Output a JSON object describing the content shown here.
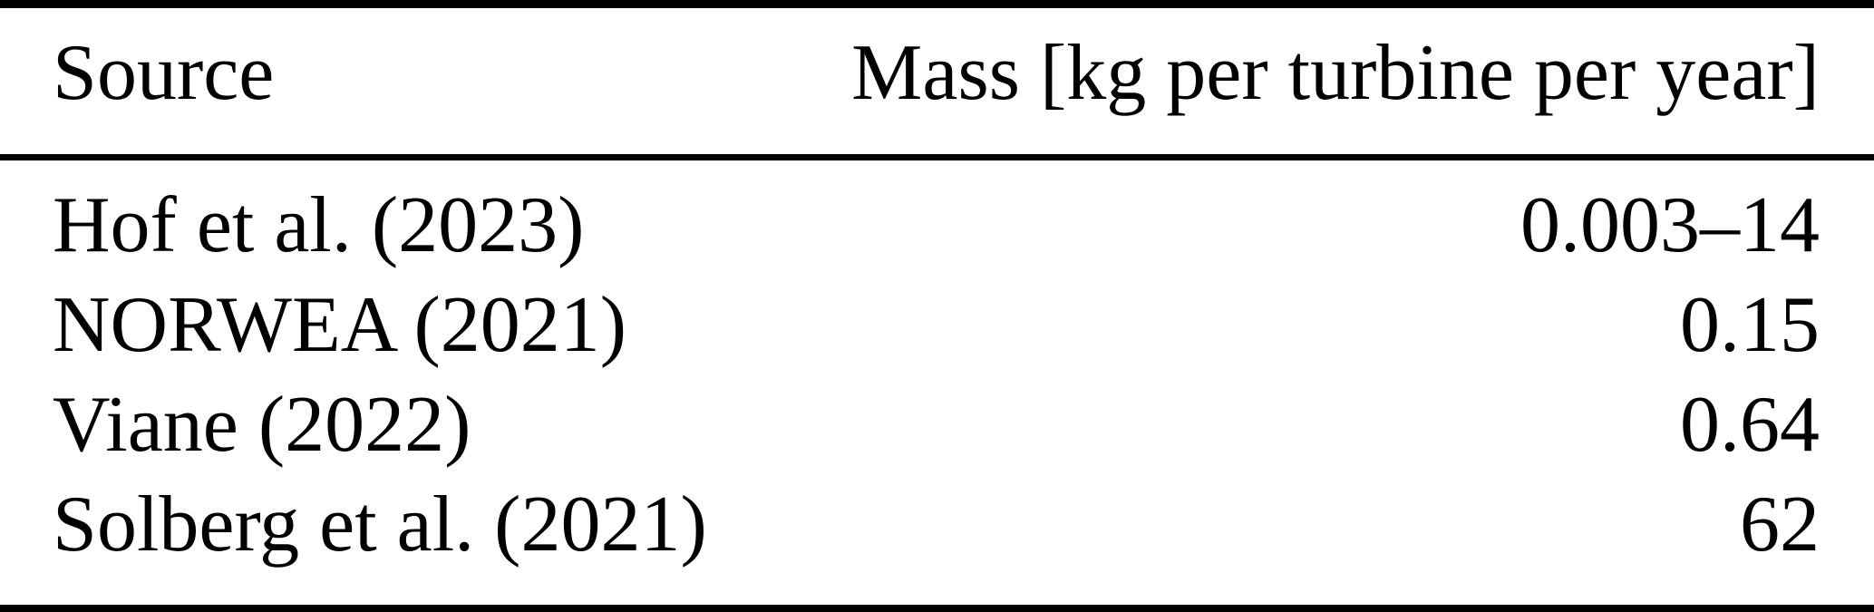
{
  "table": {
    "header": {
      "source": "Source",
      "mass": "Mass [kg per turbine per year]"
    },
    "rows": [
      {
        "source": "Hof et al. (2023)",
        "mass": "0.003–14"
      },
      {
        "source": "NORWEA (2021)",
        "mass": "0.15"
      },
      {
        "source": "Viane (2022)",
        "mass": "0.64"
      },
      {
        "source": "Solberg et al. (2021)",
        "mass": "62"
      }
    ]
  },
  "colors": {
    "text": "#000000",
    "rule": "#000000",
    "background": "#ffffff"
  }
}
